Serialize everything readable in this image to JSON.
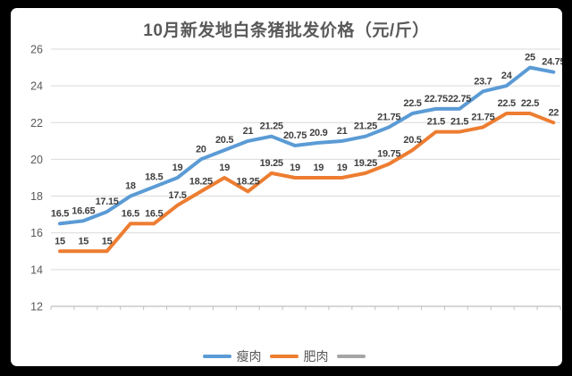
{
  "title": "10月新发地白条猪批发价格（元/斤）",
  "colors": {
    "lean": "#5B9BD5",
    "fat": "#ED7D31",
    "unnamed": "#A5A5A5",
    "grid": "#D9D9D9",
    "axis": "#BFBFBF",
    "data_label": "#404040",
    "axis_text": "#595959",
    "frame": "#000000",
    "background": "#FFFFFF"
  },
  "legend": {
    "position": "bottom",
    "items": [
      {
        "label": "瘦肉",
        "color_key": "lean"
      },
      {
        "label": "肥肉",
        "color_key": "fat"
      },
      {
        "label": "",
        "color_key": "unnamed"
      }
    ]
  },
  "chart_data": {
    "type": "line",
    "title": "10月新发地白条猪批发价格（元/斤）",
    "xlabel": "",
    "ylabel": "",
    "ylim": [
      12,
      26
    ],
    "y_ticks": [
      12,
      14,
      16,
      18,
      20,
      22,
      24,
      26
    ],
    "x_tick_labels": [],
    "x_categories_count": 22,
    "grid": true,
    "data_labels": true,
    "legend_position": "bottom",
    "series": [
      {
        "name": "瘦肉",
        "color": "#5B9BD5",
        "values": [
          16.5,
          16.65,
          17.15,
          18,
          18.5,
          19,
          20,
          20.5,
          21,
          21.25,
          20.75,
          20.9,
          21,
          21.25,
          21.75,
          22.5,
          22.75,
          22.75,
          23.7,
          24,
          25,
          24.75
        ]
      },
      {
        "name": "肥肉",
        "color": "#ED7D31",
        "values": [
          15,
          15,
          15,
          16.5,
          16.5,
          17.5,
          18.25,
          19,
          18.25,
          19.25,
          19,
          19,
          19,
          19.25,
          19.75,
          20.5,
          21.5,
          21.5,
          21.75,
          22.5,
          22.5,
          22
        ]
      },
      {
        "name": "",
        "color": "#A5A5A5",
        "values": []
      }
    ]
  }
}
